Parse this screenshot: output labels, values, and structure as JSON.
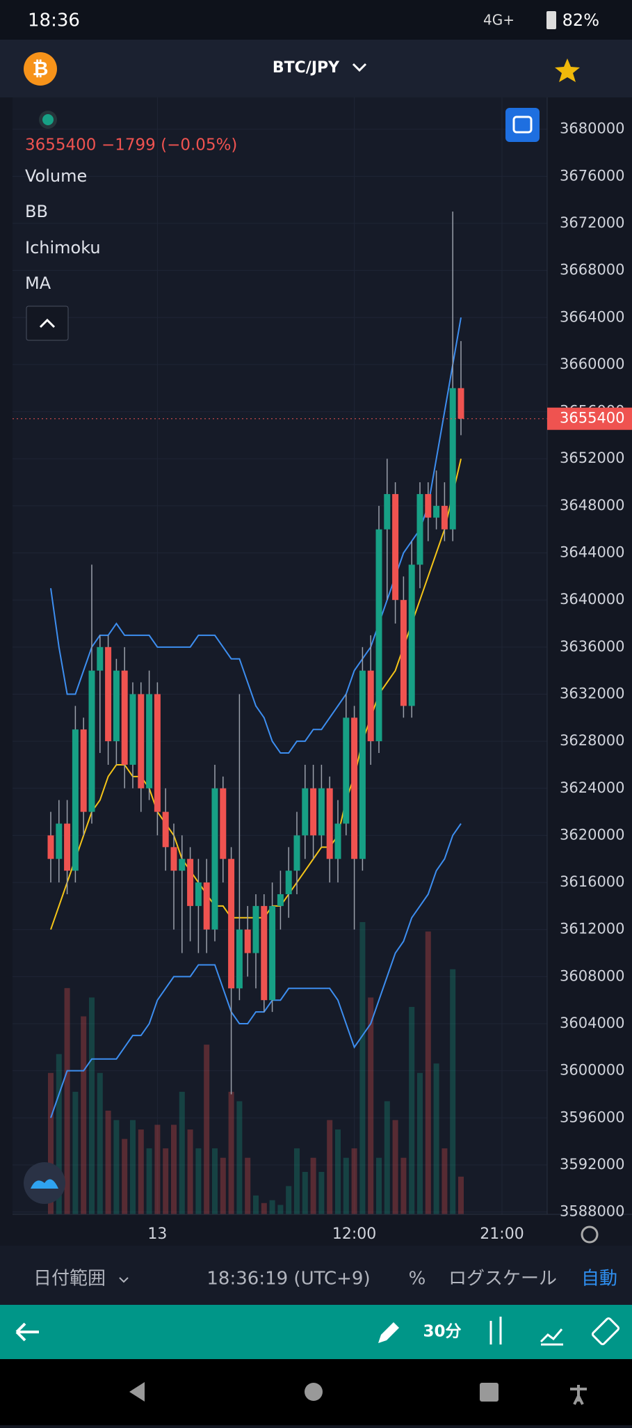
{
  "status_bar": {
    "time": "18:36",
    "network": "4G+",
    "battery": "82%"
  },
  "header": {
    "title": "BTC/JPY"
  },
  "legend": {
    "price": "3655400",
    "change": "−1799 (−0.05%)",
    "items": [
      "Volume",
      "BB",
      "Ichimoku",
      "MA"
    ]
  },
  "chart_data": {
    "type": "candlestick",
    "ylim": [
      3587800,
      3682700
    ],
    "yticks": [
      3680000,
      3676000,
      3672000,
      3668000,
      3664000,
      3660000,
      3656000,
      3652000,
      3648000,
      3644000,
      3640000,
      3636000,
      3632000,
      3628000,
      3624000,
      3620000,
      3616000,
      3612000,
      3608000,
      3604000,
      3600000,
      3596000,
      3592000,
      3588000
    ],
    "xticks": [
      {
        "value": 13,
        "label": "13"
      },
      {
        "value": 37,
        "label": "12:00"
      },
      {
        "value": 55,
        "label": "21:00"
      }
    ],
    "last_price": {
      "value": 3655400,
      "label": "3655400"
    },
    "up_color": "#17a085",
    "down_color": "#ef5350",
    "ohlc": [
      [
        3620000,
        3622000,
        3616000,
        3618000
      ],
      [
        3618000,
        3623000,
        3616000,
        3621000
      ],
      [
        3621000,
        3623000,
        3615000,
        3617000
      ],
      [
        3617000,
        3631000,
        3616000,
        3629000
      ],
      [
        3629000,
        3630000,
        3620000,
        3622000
      ],
      [
        3622000,
        3643000,
        3621000,
        3634000
      ],
      [
        3634000,
        3637000,
        3627000,
        3636000
      ],
      [
        3636000,
        3637000,
        3626000,
        3628000
      ],
      [
        3628000,
        3635000,
        3626000,
        3634000
      ],
      [
        3634000,
        3636000,
        3624000,
        3626000
      ],
      [
        3626000,
        3633000,
        3624000,
        3632000
      ],
      [
        3632000,
        3633000,
        3622000,
        3624000
      ],
      [
        3624000,
        3634000,
        3623000,
        3632000
      ],
      [
        3632000,
        3633000,
        3620000,
        3622000
      ],
      [
        3622000,
        3624000,
        3617000,
        3619000
      ],
      [
        3619000,
        3621000,
        3612000,
        3617000
      ],
      [
        3617000,
        3620000,
        3610000,
        3618000
      ],
      [
        3618000,
        3619000,
        3611000,
        3614000
      ],
      [
        3614000,
        3618000,
        3610000,
        3616000
      ],
      [
        3616000,
        3618000,
        3610000,
        3612000
      ],
      [
        3612000,
        3626000,
        3611000,
        3624000
      ],
      [
        3624000,
        3625000,
        3616000,
        3618000
      ],
      [
        3618000,
        3619000,
        3598000,
        3607000
      ],
      [
        3607000,
        3632000,
        3606000,
        3612000
      ],
      [
        3612000,
        3614000,
        3608000,
        3610000
      ],
      [
        3610000,
        3615000,
        3607000,
        3614000
      ],
      [
        3614000,
        3615000,
        3605000,
        3606000
      ],
      [
        3606000,
        3616000,
        3605000,
        3614000
      ],
      [
        3614000,
        3617000,
        3612000,
        3615000
      ],
      [
        3615000,
        3619000,
        3613000,
        3617000
      ],
      [
        3617000,
        3622000,
        3615000,
        3620000
      ],
      [
        3620000,
        3626000,
        3618000,
        3624000
      ],
      [
        3624000,
        3626000,
        3618000,
        3620000
      ],
      [
        3620000,
        3626000,
        3619000,
        3624000
      ],
      [
        3624000,
        3625000,
        3616000,
        3618000
      ],
      [
        3618000,
        3623000,
        3616000,
        3621000
      ],
      [
        3621000,
        3632000,
        3620000,
        3630000
      ],
      [
        3630000,
        3631000,
        3612000,
        3618000
      ],
      [
        3618000,
        3636000,
        3617000,
        3634000
      ],
      [
        3634000,
        3637000,
        3626000,
        3628000
      ],
      [
        3628000,
        3648000,
        3627000,
        3646000
      ],
      [
        3646000,
        3652000,
        3640000,
        3649000
      ],
      [
        3649000,
        3650000,
        3638000,
        3640000
      ],
      [
        3640000,
        3642000,
        3630000,
        3631000
      ],
      [
        3631000,
        3645000,
        3630000,
        3643000
      ],
      [
        3643000,
        3650000,
        3641000,
        3649000
      ],
      [
        3649000,
        3650000,
        3645000,
        3647000
      ],
      [
        3647000,
        3651000,
        3646000,
        3648000
      ],
      [
        3648000,
        3650000,
        3645000,
        3646000
      ],
      [
        3646000,
        3673000,
        3645000,
        3658000
      ],
      [
        3658000,
        3662000,
        3654000,
        3655400
      ]
    ],
    "volume": [
      150,
      170,
      240,
      130,
      210,
      230,
      150,
      110,
      100,
      80,
      100,
      90,
      70,
      95,
      70,
      95,
      130,
      90,
      70,
      180,
      70,
      60,
      130,
      120,
      60,
      20,
      12,
      15,
      10,
      30,
      70,
      45,
      60,
      45,
      100,
      90,
      60,
      70,
      310,
      230,
      60,
      120,
      100,
      60,
      220,
      150,
      300,
      160,
      70,
      260,
      40
    ],
    "series": [
      {
        "color": "#3d8ef0",
        "values": [
          3641000,
          3636000,
          3632000,
          3632000,
          3634000,
          3636000,
          3637000,
          3637000,
          3638000,
          3637000,
          3637000,
          3637000,
          3637000,
          3636000,
          3636000,
          3636000,
          3636000,
          3636000,
          3637000,
          3637000,
          3637000,
          3636000,
          3635000,
          3635000,
          3633000,
          3631000,
          3630000,
          3628000,
          3627000,
          3627000,
          3628000,
          3628000,
          3629000,
          3629000,
          3630000,
          3631000,
          3632000,
          3634000,
          3635000,
          3636000,
          3638000,
          3640000,
          3642000,
          3644000,
          3645000,
          3646000,
          3648000,
          3652000,
          3656000,
          3660000,
          3664000
        ]
      },
      {
        "color": "#3d8ef0",
        "values": [
          3596000,
          3598000,
          3600000,
          3600000,
          3600000,
          3601000,
          3601000,
          3601000,
          3601000,
          3602000,
          3603000,
          3603000,
          3604000,
          3606000,
          3607000,
          3608000,
          3608000,
          3608000,
          3609000,
          3609000,
          3609000,
          3607000,
          3605000,
          3604000,
          3604000,
          3605000,
          3605000,
          3606000,
          3606000,
          3607000,
          3607000,
          3607000,
          3607000,
          3607000,
          3607000,
          3606000,
          3604000,
          3602000,
          3603000,
          3604000,
          3606000,
          3608000,
          3610000,
          3611000,
          3613000,
          3614000,
          3615000,
          3617000,
          3618000,
          3620000,
          3621000
        ]
      },
      {
        "color": "#f5c518",
        "values": [
          3612000,
          3614000,
          3616000,
          3618000,
          3620000,
          3622000,
          3623000,
          3625000,
          3626000,
          3626000,
          3625000,
          3625000,
          3624000,
          3622000,
          3621000,
          3620000,
          3618000,
          3617000,
          3616000,
          3615000,
          3614000,
          3614000,
          3613000,
          3613000,
          3613000,
          3613000,
          3613000,
          3614000,
          3614000,
          3615000,
          3616000,
          3617000,
          3618000,
          3619000,
          3619000,
          3620000,
          3623000,
          3625000,
          3628000,
          3630000,
          3632000,
          3633000,
          3634000,
          3636000,
          3638000,
          3640000,
          3642000,
          3644000,
          3646000,
          3649000,
          3652000
        ]
      }
    ]
  },
  "bottom_bar": {
    "range": "日付範囲",
    "clock": "18:36:19 (UTC+9)",
    "percent": "%",
    "log": "ログスケール",
    "auto": "自動"
  },
  "toolbar": {
    "interval": "30分"
  }
}
